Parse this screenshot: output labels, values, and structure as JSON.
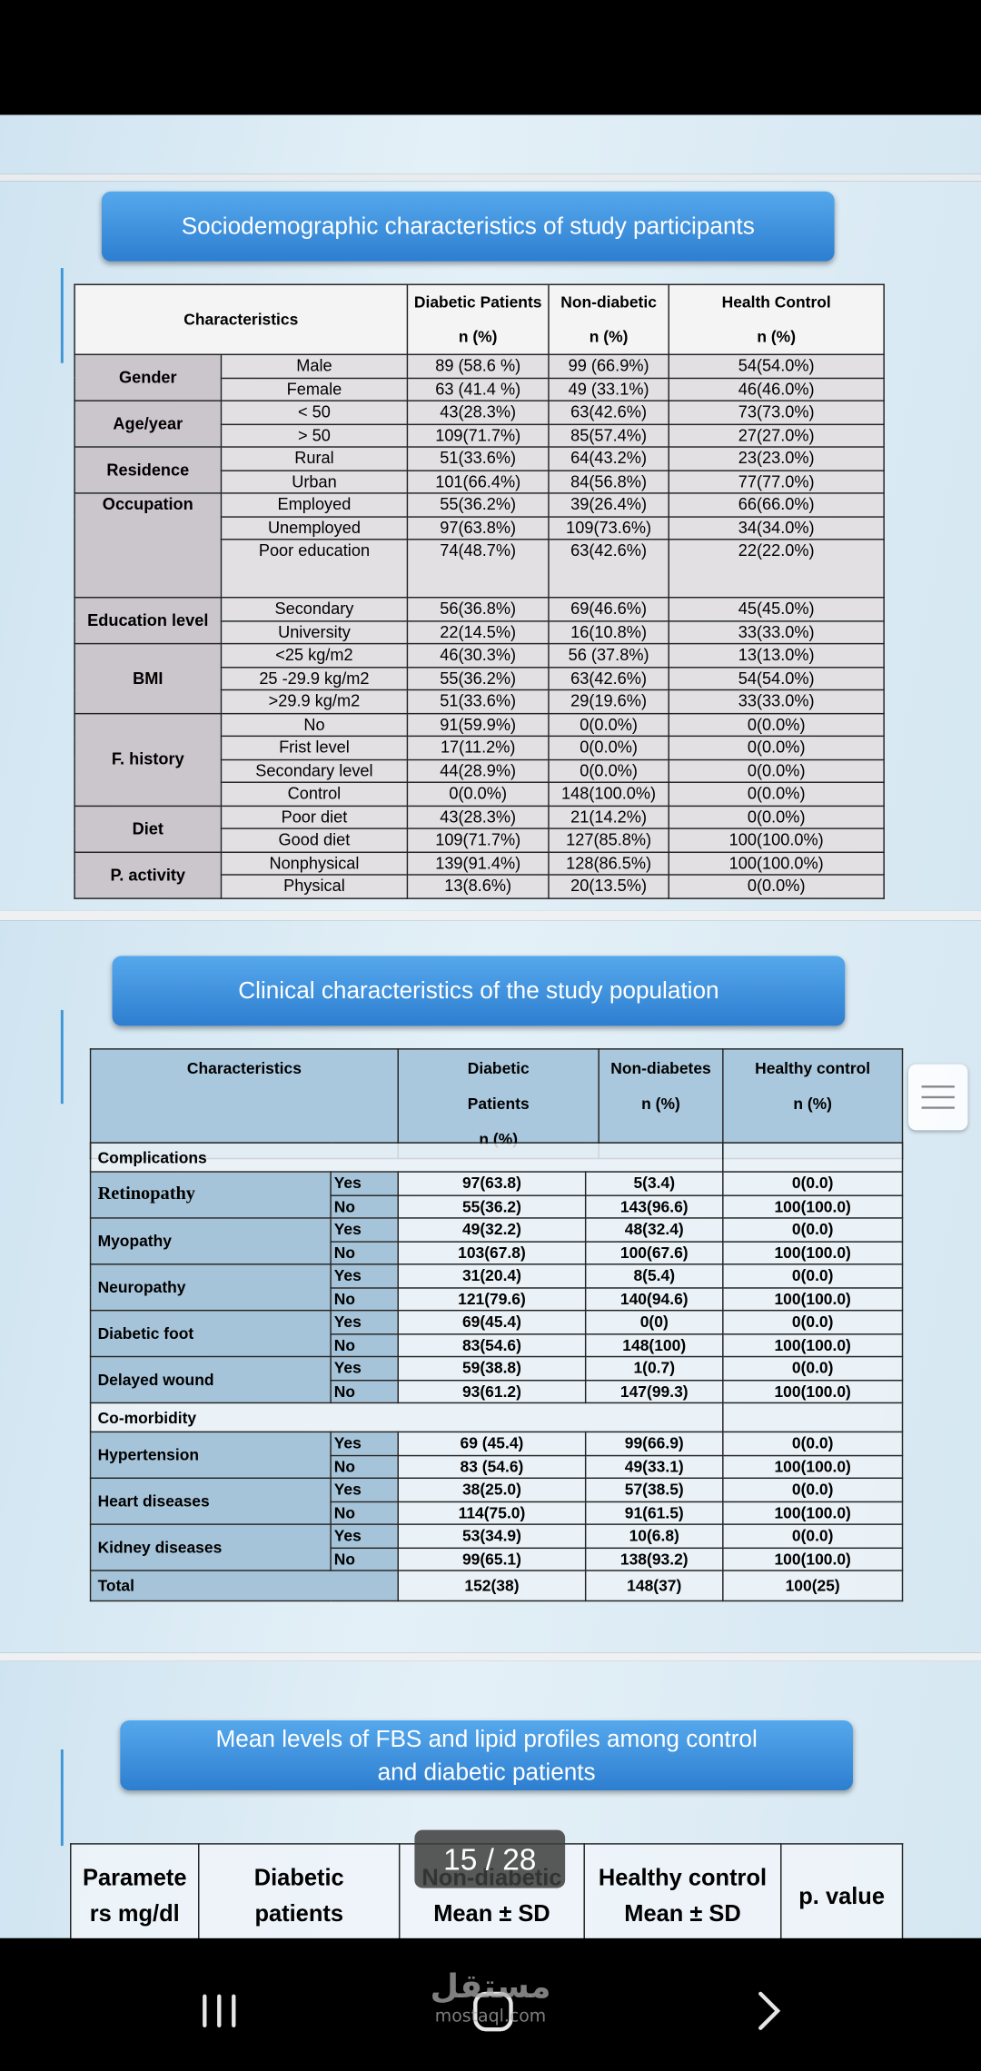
{
  "slide1": {
    "title": "Sociodemographic characteristics of study participants",
    "header": {
      "characteristics": "Characteristics",
      "columns": [
        {
          "name": "Diabetic Patients",
          "unit": "n (%)"
        },
        {
          "name": "Non-diabetic",
          "unit": "n (%)"
        },
        {
          "name": "Health Control",
          "unit": "n (%)"
        }
      ]
    },
    "groups": [
      {
        "name": "Gender",
        "rows": [
          {
            "label": "Male",
            "values": [
              "89 (58.6 %)",
              "99 (66.9%)",
              "54(54.0%)"
            ]
          },
          {
            "label": "Female",
            "values": [
              "63 (41.4 %)",
              "49 (33.1%)",
              "46(46.0%)"
            ]
          }
        ]
      },
      {
        "name": "Age/year",
        "rows": [
          {
            "label": "< 50",
            "values": [
              "43(28.3%)",
              "63(42.6%)",
              "73(73.0%)"
            ]
          },
          {
            "label": "> 50",
            "values": [
              "109(71.7%)",
              "85(57.4%)",
              "27(27.0%)"
            ]
          }
        ]
      },
      {
        "name": "Residence",
        "rows": [
          {
            "label": "Rural",
            "values": [
              "51(33.6%)",
              "64(43.2%)",
              "23(23.0%)"
            ]
          },
          {
            "label": "Urban",
            "values": [
              "101(66.4%)",
              "84(56.8%)",
              "77(77.0%)"
            ]
          }
        ]
      },
      {
        "name": "Occupation",
        "rows": [
          {
            "label": "Employed",
            "values": [
              "55(36.2%)",
              "39(26.4%)",
              "66(66.0%)"
            ]
          },
          {
            "label": "Unemployed",
            "values": [
              "97(63.8%)",
              "109(73.6%)",
              "34(34.0%)"
            ]
          },
          {
            "label": "Poor education",
            "values": [
              "74(48.7%)",
              "63(42.6%)",
              "22(22.0%)"
            ]
          }
        ]
      },
      {
        "name": "Education level",
        "rows": [
          {
            "label": "Secondary",
            "values": [
              "56(36.8%)",
              "69(46.6%)",
              "45(45.0%)"
            ]
          },
          {
            "label": "University",
            "values": [
              "22(14.5%)",
              "16(10.8%)",
              "33(33.0%)"
            ]
          }
        ]
      },
      {
        "name": "BMI",
        "rows": [
          {
            "label": "<25 kg/m2",
            "values": [
              "46(30.3%)",
              "56 (37.8%)",
              "13(13.0%)"
            ]
          },
          {
            "label": "25 -29.9 kg/m2",
            "values": [
              "55(36.2%)",
              "63(42.6%)",
              "54(54.0%)"
            ]
          },
          {
            "label": ">29.9 kg/m2",
            "values": [
              "51(33.6%)",
              "29(19.6%)",
              "33(33.0%)"
            ]
          }
        ]
      },
      {
        "name": "F. history",
        "rows": [
          {
            "label": "No",
            "values": [
              "91(59.9%)",
              "0(0.0%)",
              "0(0.0%)"
            ]
          },
          {
            "label": "Frist level",
            "values": [
              "17(11.2%)",
              "0(0.0%)",
              "0(0.0%)"
            ]
          },
          {
            "label": "Secondary level",
            "values": [
              "44(28.9%)",
              "0(0.0%)",
              "0(0.0%)"
            ]
          },
          {
            "label": "Control",
            "values": [
              "0(0.0%)",
              "148(100.0%)",
              "0(0.0%)"
            ]
          }
        ]
      },
      {
        "name": "Diet",
        "rows": [
          {
            "label": "Poor diet",
            "values": [
              "43(28.3%)",
              "21(14.2%)",
              "0(0.0%)"
            ]
          },
          {
            "label": "Good diet",
            "values": [
              "109(71.7%)",
              "127(85.8%)",
              "100(100.0%)"
            ]
          }
        ]
      },
      {
        "name": "P. activity",
        "rows": [
          {
            "label": "Nonphysical",
            "values": [
              "139(91.4%)",
              "128(86.5%)",
              "100(100.0%)"
            ]
          },
          {
            "label": "Physical",
            "values": [
              "13(8.6%)",
              "20(13.5%)",
              "0(0.0%)"
            ]
          }
        ]
      }
    ]
  },
  "slide2": {
    "title": "Clinical characteristics of the study population",
    "header": {
      "characteristics": "Characteristics",
      "columns": [
        {
          "lines": [
            "Diabetic",
            "Patients",
            "n (%)"
          ]
        },
        {
          "lines": [
            "Non-diabetes",
            "n (%)"
          ]
        },
        {
          "lines": [
            "Healthy control",
            "n (%)"
          ]
        }
      ]
    },
    "sections": [
      {
        "name": "Complications",
        "items": [
          {
            "name": "Retinopathy",
            "rows": [
              {
                "label": "Yes",
                "values": [
                  "97(63.8)",
                  "5(3.4)",
                  "0(0.0)"
                ]
              },
              {
                "label": "No",
                "values": [
                  "55(36.2)",
                  "143(96.6)",
                  "100(100.0)"
                ]
              }
            ]
          },
          {
            "name": "Myopathy",
            "rows": [
              {
                "label": "Yes",
                "values": [
                  "49(32.2)",
                  "48(32.4)",
                  "0(0.0)"
                ]
              },
              {
                "label": "No",
                "values": [
                  "103(67.8)",
                  "100(67.6)",
                  "100(100.0)"
                ]
              }
            ]
          },
          {
            "name": "Neuropathy",
            "rows": [
              {
                "label": "Yes",
                "values": [
                  "31(20.4)",
                  "8(5.4)",
                  "0(0.0)"
                ]
              },
              {
                "label": "No",
                "values": [
                  "121(79.6)",
                  "140(94.6)",
                  "100(100.0)"
                ]
              }
            ]
          },
          {
            "name": "Diabetic foot",
            "rows": [
              {
                "label": "Yes",
                "values": [
                  "69(45.4)",
                  "0(0)",
                  "0(0.0)"
                ]
              },
              {
                "label": "No",
                "values": [
                  "83(54.6)",
                  "148(100)",
                  "100(100.0)"
                ]
              }
            ]
          },
          {
            "name": "Delayed wound",
            "rows": [
              {
                "label": "Yes",
                "values": [
                  "59(38.8)",
                  "1(0.7)",
                  "0(0.0)"
                ]
              },
              {
                "label": "No",
                "values": [
                  "93(61.2)",
                  "147(99.3)",
                  "100(100.0)"
                ]
              }
            ]
          }
        ]
      },
      {
        "name": "Co-morbidity",
        "items": [
          {
            "name": "Hypertension",
            "rows": [
              {
                "label": "Yes",
                "values": [
                  "69 (45.4)",
                  "99(66.9)",
                  "0(0.0)"
                ]
              },
              {
                "label": "No",
                "values": [
                  "83 (54.6)",
                  "49(33.1)",
                  "100(100.0)"
                ]
              }
            ]
          },
          {
            "name": "Heart diseases",
            "rows": [
              {
                "label": "Yes",
                "values": [
                  "38(25.0)",
                  "57(38.5)",
                  "0(0.0)"
                ]
              },
              {
                "label": "No",
                "values": [
                  "114(75.0)",
                  "91(61.5)",
                  "100(100.0)"
                ]
              }
            ]
          },
          {
            "name": "Kidney diseases",
            "rows": [
              {
                "label": "Yes",
                "values": [
                  "53(34.9)",
                  "10(6.8)",
                  "0(0.0)"
                ]
              },
              {
                "label": "No",
                "values": [
                  "99(65.1)",
                  "138(93.2)",
                  "100(100.0)"
                ]
              }
            ]
          }
        ]
      }
    ],
    "total": {
      "label": "Total",
      "values": [
        "152(38)",
        "148(37)",
        "100(25)"
      ]
    }
  },
  "slide3": {
    "title_lines": [
      "Mean levels of FBS and lipid profiles among control",
      "and diabetic patients"
    ],
    "header": [
      {
        "lines": [
          "Paramete",
          "rs mg/dl"
        ]
      },
      {
        "lines": [
          "Diabetic",
          "patients"
        ]
      },
      {
        "lines": [
          "Non-diabetic",
          "Mean ± SD"
        ]
      },
      {
        "lines": [
          "Healthy control",
          "Mean ± SD"
        ]
      },
      {
        "lines": [
          "p. value"
        ]
      }
    ]
  },
  "page_indicator": "15 / 28",
  "watermark": {
    "arabic": "مستقل",
    "latin": "mostaql.com"
  }
}
